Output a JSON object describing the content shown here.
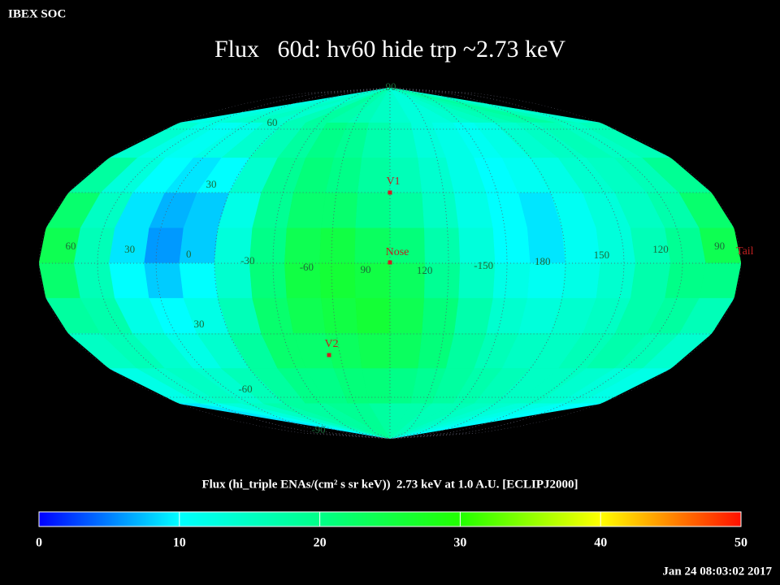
{
  "header": {
    "source": "IBEX SOC",
    "title": "Flux   60d: hv60 hide trp ~2.73 keV",
    "timestamp": "Jan 24 08:03:02 2017"
  },
  "map": {
    "type": "heatmap",
    "longitude_labels": [
      "60",
      "30",
      "0",
      "-30",
      "-60",
      "90",
      "120",
      "-150",
      "180",
      "150",
      "120",
      "90"
    ],
    "latitude_labels": [
      "90",
      "60",
      "30",
      "30",
      "-60",
      "-90"
    ],
    "markers": [
      "V1",
      "Nose",
      "V2",
      "Tail"
    ],
    "flux": [
      [
        12,
        13,
        14,
        15,
        14,
        16,
        18,
        17,
        16,
        15,
        14,
        13,
        13,
        14,
        15,
        16,
        17,
        18,
        16,
        14
      ],
      [
        14,
        12,
        11,
        12,
        14,
        16,
        18,
        20,
        19,
        17,
        15,
        13,
        12,
        11,
        12,
        14,
        15,
        16,
        15,
        16
      ],
      [
        18,
        13,
        10,
        9,
        10,
        14,
        19,
        21,
        20,
        18,
        16,
        14,
        12,
        10,
        11,
        12,
        14,
        15,
        16,
        19
      ],
      [
        22,
        15,
        9,
        7,
        8,
        12,
        19,
        22,
        22,
        20,
        18,
        15,
        12,
        10,
        9,
        11,
        13,
        15,
        17,
        22
      ],
      [
        24,
        16,
        9,
        6,
        8,
        13,
        20,
        24,
        25,
        23,
        21,
        17,
        13,
        10,
        9,
        11,
        13,
        16,
        19,
        24
      ],
      [
        22,
        16,
        10,
        8,
        10,
        14,
        21,
        25,
        26,
        25,
        23,
        19,
        15,
        12,
        11,
        12,
        14,
        17,
        20,
        20
      ],
      [
        18,
        17,
        12,
        10,
        12,
        16,
        22,
        24,
        25,
        26,
        24,
        21,
        17,
        14,
        13,
        14,
        15,
        17,
        18,
        16
      ],
      [
        15,
        16,
        14,
        12,
        14,
        18,
        22,
        22,
        23,
        24,
        23,
        21,
        18,
        16,
        15,
        15,
        16,
        17,
        16,
        14
      ],
      [
        12,
        14,
        15,
        14,
        16,
        18,
        20,
        20,
        21,
        21,
        20,
        19,
        18,
        17,
        16,
        15,
        15,
        14,
        13,
        12
      ],
      [
        9,
        11,
        13,
        15,
        17,
        18,
        18,
        19,
        19,
        18,
        17,
        17,
        16,
        16,
        15,
        14,
        13,
        12,
        11,
        10
      ]
    ]
  },
  "colorbar": {
    "title": "Flux (hi_triple ENAs/(cm² s sr keV))  2.73 keV at 1.0 A.U. [ECLIPJ2000]",
    "lim": [
      0,
      50
    ],
    "ticks": [
      0,
      10,
      20,
      30,
      40,
      50
    ],
    "colormap": [
      {
        "value": 0,
        "color": "#0000ff"
      },
      {
        "value": 10,
        "color": "#00ffff"
      },
      {
        "value": 20,
        "color": "#00ff88"
      },
      {
        "value": 30,
        "color": "#22ff00"
      },
      {
        "value": 40,
        "color": "#ffff00"
      },
      {
        "value": 50,
        "color": "#ff1000"
      }
    ]
  }
}
